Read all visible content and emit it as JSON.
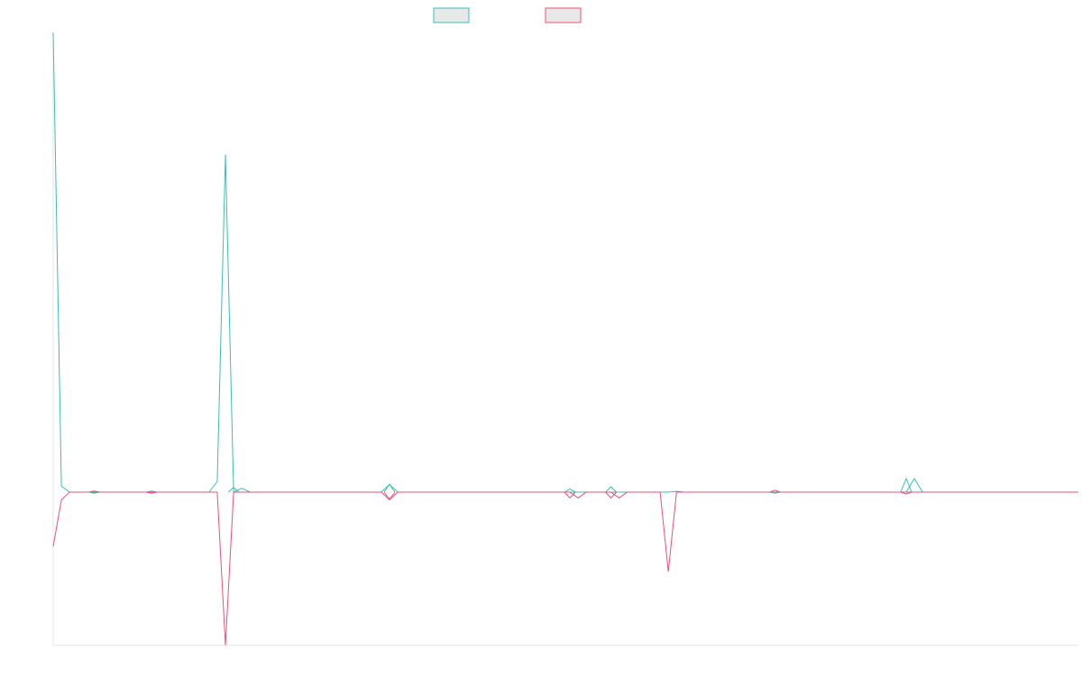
{
  "chart_data": {
    "type": "line",
    "title": "",
    "xlabel": "",
    "ylabel": "",
    "grid": false,
    "legend_position": "top-center",
    "ylim": [
      -395,
      1185
    ],
    "x": [
      0,
      1,
      2,
      3,
      4,
      5,
      6,
      7,
      8,
      9,
      10,
      11,
      12,
      13,
      14,
      15,
      16,
      17,
      18,
      19,
      20,
      21,
      22,
      23,
      24,
      25,
      26,
      27,
      28,
      29,
      30,
      31,
      32,
      33,
      34,
      35,
      36,
      37,
      38,
      39,
      40,
      41,
      42,
      43,
      44,
      45,
      46,
      47,
      48,
      49,
      50,
      51,
      52,
      53,
      54,
      55,
      56,
      57,
      58,
      59,
      60,
      61,
      62,
      63,
      64,
      65,
      66,
      67,
      68,
      69,
      70,
      71,
      72,
      73,
      74,
      75,
      76,
      77,
      78,
      79,
      80,
      81,
      82,
      83,
      84,
      85,
      86,
      87,
      88,
      89,
      90,
      91,
      92,
      93,
      94,
      95,
      96,
      97,
      98,
      99,
      100,
      101,
      102,
      103,
      104,
      105,
      106,
      107,
      108,
      109,
      110,
      111,
      112,
      113,
      114,
      115,
      116,
      117,
      118,
      119,
      120,
      121,
      122,
      123,
      124,
      125
    ],
    "series": [
      {
        "name": "",
        "color": "#3cbfb0",
        "legend_fill": "#e8e8e8",
        "values": [
          1185,
          15,
          0,
          0,
          0,
          0,
          0,
          0,
          0,
          0,
          0,
          0,
          0,
          0,
          0,
          0,
          0,
          0,
          0,
          0,
          27,
          870,
          0,
          10,
          0,
          0,
          0,
          0,
          0,
          0,
          0,
          0,
          0,
          0,
          0,
          0,
          0,
          0,
          0,
          0,
          0,
          20,
          0,
          0,
          0,
          0,
          0,
          0,
          0,
          0,
          0,
          0,
          0,
          0,
          0,
          0,
          0,
          0,
          0,
          0,
          0,
          0,
          0,
          0,
          0,
          0,
          0,
          0,
          0,
          0,
          0,
          0,
          0,
          0,
          0,
          0,
          2,
          0,
          0,
          0,
          0,
          0,
          0,
          0,
          0,
          0,
          0,
          0,
          0,
          0,
          0,
          0,
          0,
          0,
          0,
          0,
          0,
          0,
          0,
          0,
          0,
          0,
          0,
          0,
          0,
          35,
          0,
          0,
          0,
          0,
          0,
          0,
          0,
          0,
          0,
          0,
          0,
          0,
          0,
          0,
          0,
          0,
          0,
          0,
          0,
          0
        ]
      },
      {
        "name": "",
        "color": "#e8527a",
        "legend_fill": "#e8e8e8",
        "values": [
          -140,
          -20,
          0,
          0,
          0,
          0,
          0,
          0,
          0,
          0,
          0,
          0,
          0,
          0,
          0,
          0,
          0,
          0,
          0,
          0,
          0,
          -395,
          0,
          0,
          0,
          0,
          0,
          0,
          0,
          0,
          0,
          0,
          0,
          0,
          0,
          0,
          0,
          0,
          0,
          0,
          0,
          -20,
          0,
          0,
          0,
          0,
          0,
          0,
          0,
          0,
          0,
          0,
          0,
          0,
          0,
          0,
          0,
          0,
          0,
          0,
          0,
          0,
          0,
          0,
          -15,
          0,
          0,
          0,
          0,
          -15,
          0,
          0,
          0,
          0,
          0,
          -205,
          0,
          0,
          0,
          0,
          0,
          0,
          0,
          0,
          0,
          0,
          0,
          0,
          0,
          0,
          0,
          0,
          0,
          0,
          0,
          0,
          0,
          0,
          0,
          0,
          0,
          0,
          0,
          0,
          0,
          0,
          0,
          0,
          0,
          0,
          0,
          0,
          0,
          0,
          0,
          0,
          0,
          0,
          0,
          0,
          0,
          0,
          0,
          0,
          0,
          0
        ]
      }
    ],
    "small_marks": [
      {
        "series": 0,
        "x": 5,
        "value": -3
      },
      {
        "series": 1,
        "x": 5,
        "value": 3
      },
      {
        "series": 0,
        "x": 12,
        "value": 3
      },
      {
        "series": 1,
        "x": 12,
        "value": -3
      },
      {
        "series": 0,
        "x": 22,
        "value": 12
      },
      {
        "series": 0,
        "x": 41,
        "value": 20
      },
      {
        "series": 1,
        "x": 41,
        "value": -18
      },
      {
        "series": 0,
        "x": 63,
        "value": 8
      },
      {
        "series": 1,
        "x": 63,
        "value": -15
      },
      {
        "series": 0,
        "x": 68,
        "value": 14
      },
      {
        "series": 1,
        "x": 68,
        "value": -15
      },
      {
        "series": 1,
        "x": 88,
        "value": 5
      },
      {
        "series": 0,
        "x": 88,
        "value": -3
      },
      {
        "series": 0,
        "x": 104,
        "value": 35
      },
      {
        "series": 1,
        "x": 104,
        "value": -5
      }
    ]
  }
}
